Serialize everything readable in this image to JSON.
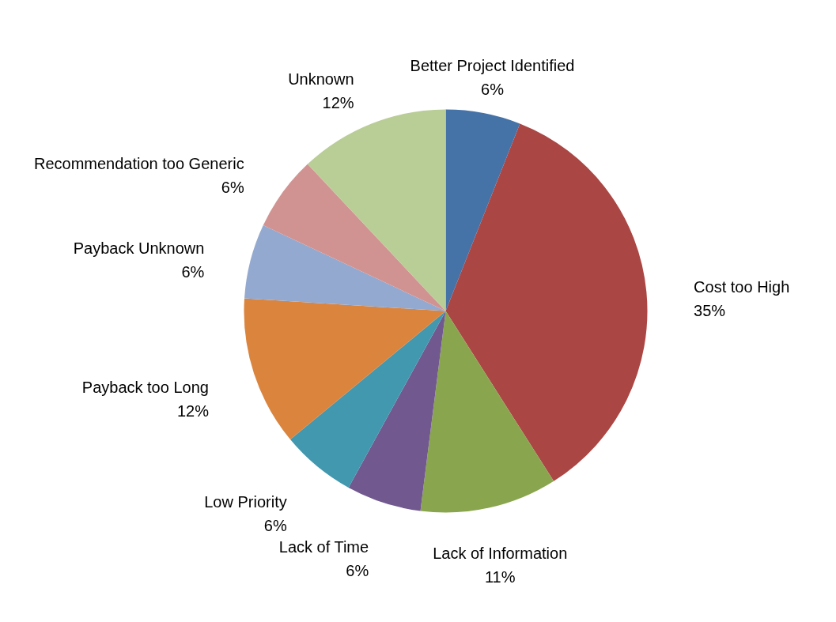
{
  "chart_data": {
    "type": "pie",
    "categories": [
      "Better Project Identified",
      "Cost too High",
      "Lack of Information",
      "Lack of Time",
      "Low Priority",
      "Payback too Long",
      "Payback Unknown",
      "Recommendation too Generic",
      "Unknown"
    ],
    "values": [
      6,
      35,
      11,
      6,
      6,
      12,
      6,
      6,
      12
    ],
    "value_labels": [
      "6%",
      "35%",
      "11%",
      "6%",
      "6%",
      "12%",
      "6%",
      "6%",
      "12%"
    ],
    "colors": [
      "#4572a7",
      "#aa4643",
      "#89a54e",
      "#71588f",
      "#4198af",
      "#db843d",
      "#93a9cf",
      "#d19392",
      "#b9cd96"
    ]
  }
}
